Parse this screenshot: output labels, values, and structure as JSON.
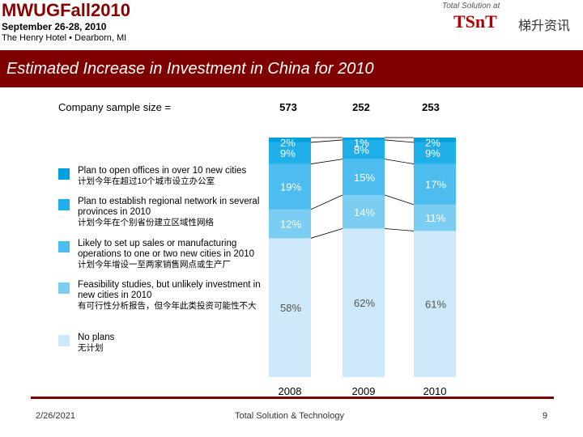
{
  "header": {
    "event_title_part1": "MWUGFall",
    "event_title_year": "2010",
    "date": "September 26-28, 2010",
    "venue": "The Henry Hotel  •  Dearborn, MI"
  },
  "logo": {
    "tagline": "Total Solution at",
    "name": "TSnT",
    "chinese_name": "梯升资讯",
    "brand_color": "#b00000"
  },
  "slide": {
    "title": "Estimated Increase in Investment in China for 2010",
    "band_color": "#7f0000"
  },
  "sample": {
    "label": "Company sample size =",
    "values": [
      "573",
      "252",
      "253"
    ]
  },
  "chart_data": {
    "type": "bar",
    "stacked": true,
    "normalized": true,
    "categories": [
      "2008",
      "2009",
      "2010"
    ],
    "sample_sizes": [
      573,
      252,
      253
    ],
    "series": [
      {
        "name": "No plans",
        "name_cn": "无计划",
        "color": "#cde9f9",
        "values": [
          58,
          62,
          61
        ],
        "labels": [
          "58%",
          "62%",
          "61%"
        ]
      },
      {
        "name": "Feasibility studies, but unlikely investment in new cities in 2010",
        "name_cn": "有可行性分析报告，但今年此类投资可能性不大",
        "color": "#7ccdf2",
        "values": [
          12,
          14,
          11
        ],
        "labels": [
          "12%",
          "14%",
          "11%"
        ]
      },
      {
        "name": "Likely to set up sales or manufacturing operations to one or two new cities in 2010",
        "name_cn": "计划今年增设一至两家销售网点或生产厂",
        "color": "#4dbcee",
        "values": [
          19,
          15,
          17
        ],
        "labels": [
          "19%",
          "15%",
          "17%"
        ]
      },
      {
        "name": "Plan to establish regional network in several provinces in 2010",
        "name_cn": "计划今年在个别省份建立区域性网络",
        "color": "#1fb0ea",
        "values": [
          9,
          8,
          9
        ],
        "labels": [
          "9%",
          "8%",
          "9%"
        ]
      },
      {
        "name": "Plan to open offices in over 10 new cities",
        "name_cn": "计划今年在超过10个城市设立办公室",
        "color": "#00a0e0",
        "values": [
          2,
          1,
          2
        ],
        "labels": [
          "2%",
          "1%",
          "2%"
        ]
      }
    ],
    "legend_placement": "left",
    "ylim": [
      0,
      100
    ]
  },
  "legend": [
    {
      "en": "Plan to open offices in over 10 new cities",
      "cn": "计划今年在超过10个城市设立办公室",
      "color": "#00a0e0"
    },
    {
      "en": "Plan to establish regional network in several provinces in 2010",
      "cn": "计划今年在个别省份建立区域性网络",
      "color": "#1fb0ea"
    },
    {
      "en": "Likely to set up sales or manufacturing operations to one or two new cities in 2010",
      "cn": "计划今年增设一至两家销售网点或生产厂",
      "color": "#4dbcee"
    },
    {
      "en": "Feasibility studies, but unlikely investment in new cities in 2010",
      "cn": "有可行性分析报告，但今年此类投资可能性不大",
      "color": "#7ccdf2"
    },
    {
      "en": "No plans",
      "cn": "无计划",
      "color": "#cde9f9"
    }
  ],
  "footer": {
    "date": "2/26/2021",
    "center_text": "Total Solution & Technology",
    "page_number": "9"
  }
}
